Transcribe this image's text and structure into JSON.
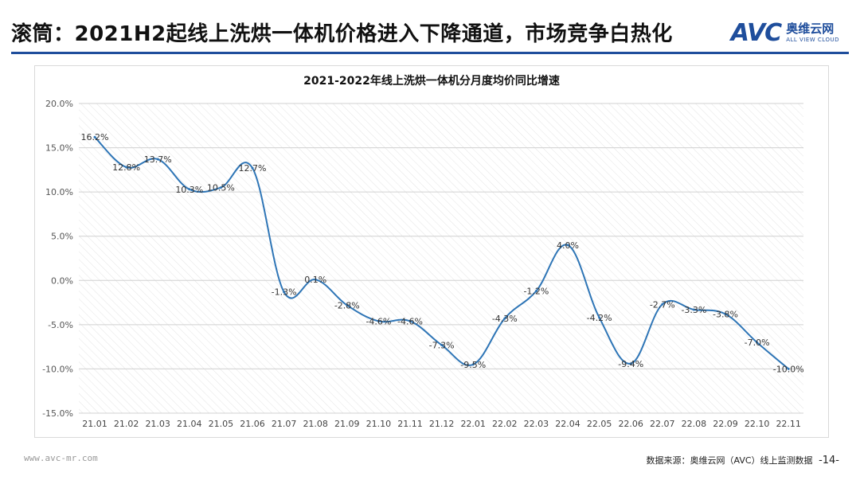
{
  "slide": {
    "title": "滚筒：2021H2起线上洗烘一体机价格进入下降通道，市场竞争白热化"
  },
  "logo": {
    "mark": "AVC",
    "cn": "奥维云网",
    "en": "ALL VIEW CLOUD"
  },
  "footer": {
    "url": "www.avc-mr.com",
    "source": "数据来源：奥维云网（AVC）线上监测数据",
    "page": "-14-"
  },
  "colors": {
    "accent": "#1f4e9c",
    "line": "#2e75b6"
  },
  "chart_data": {
    "type": "line",
    "title": "2021-2022年线上洗烘一体机分月度均价同比增速",
    "xlabel": "",
    "ylabel": "",
    "categories": [
      "21.01",
      "21.02",
      "21.03",
      "21.04",
      "21.05",
      "21.06",
      "21.07",
      "21.08",
      "21.09",
      "21.10",
      "21.11",
      "21.12",
      "22.01",
      "22.02",
      "22.03",
      "22.04",
      "22.05",
      "22.06",
      "22.07",
      "22.08",
      "22.09",
      "22.10",
      "22.11"
    ],
    "series": [
      {
        "values": [
          16.2,
          12.8,
          13.7,
          10.3,
          10.5,
          12.7,
          -1.3,
          0.1,
          -2.8,
          -4.6,
          -4.6,
          -7.3,
          -9.5,
          -4.3,
          -1.2,
          4.0,
          -4.2,
          -9.4,
          -2.7,
          -3.3,
          -3.8,
          -7.0,
          -10.0
        ],
        "labels": [
          "16.2%",
          "12.8%",
          "13.7%",
          "10.3%",
          "10.5%",
          "12.7%",
          "-1.3%",
          "0.1%",
          "-2.8%",
          "-4.6%",
          "-4.6%",
          "-7.3%",
          "-9.5%",
          "-4.3%",
          "-1.2%",
          "4.0%",
          "-4.2%",
          "-9.4%",
          "-2.7%",
          "-3.3%",
          "-3.8%",
          "-7.0%",
          "-10.0%"
        ]
      }
    ],
    "ylim": [
      -15,
      20
    ],
    "yticks": [
      20,
      15,
      10,
      5,
      0,
      -5,
      -10,
      -15
    ],
    "ytick_labels": [
      "20.0%",
      "15.0%",
      "10.0%",
      "5.0%",
      "0.0%",
      "-5.0%",
      "-10.0%",
      "-15.0%"
    ],
    "grid": true,
    "legend": "none"
  }
}
